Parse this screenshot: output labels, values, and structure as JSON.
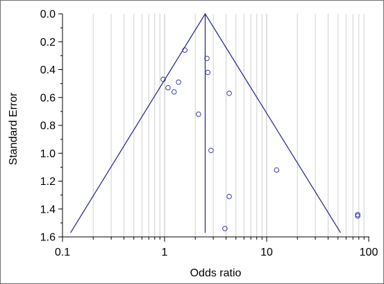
{
  "chart_data": {
    "type": "scatter",
    "title": "",
    "xlabel": "Odds ratio",
    "ylabel": "Standard Error",
    "x_scale": "log",
    "xlim": [
      0.1,
      100
    ],
    "ylim": [
      0.0,
      1.6
    ],
    "y_inverted": true,
    "x_ticks": [
      0.1,
      1,
      10,
      100
    ],
    "x_tick_labels": [
      "0.1",
      "1",
      "10",
      "100"
    ],
    "y_ticks": [
      0.0,
      0.2,
      0.4,
      0.6,
      0.8,
      1.0,
      1.2,
      1.4,
      1.6
    ],
    "y_tick_labels": [
      "0.0",
      "0.2",
      "0.4",
      "0.6",
      "0.8",
      "1.0",
      "1.2",
      "1.4",
      "1.6"
    ],
    "grid": {
      "x_minor_log": true,
      "y": false
    },
    "pooled_odds_ratio": 2.5,
    "funnel": {
      "apex": {
        "x": 2.5,
        "y": 0.0
      },
      "left_base": {
        "x": 0.12,
        "y": 1.57
      },
      "right_base": {
        "x": 53,
        "y": 1.57
      },
      "vertical_line": {
        "x": 2.5,
        "y_from": 0.0,
        "y_to": 1.57
      }
    },
    "points": [
      {
        "x": 1.58,
        "y": 0.26
      },
      {
        "x": 2.6,
        "y": 0.32
      },
      {
        "x": 2.65,
        "y": 0.42
      },
      {
        "x": 0.97,
        "y": 0.47
      },
      {
        "x": 1.37,
        "y": 0.49
      },
      {
        "x": 1.08,
        "y": 0.53
      },
      {
        "x": 1.24,
        "y": 0.56
      },
      {
        "x": 4.3,
        "y": 0.57
      },
      {
        "x": 2.15,
        "y": 0.72
      },
      {
        "x": 2.85,
        "y": 0.98
      },
      {
        "x": 12.5,
        "y": 1.12
      },
      {
        "x": 4.3,
        "y": 1.31
      },
      {
        "x": 3.9,
        "y": 1.54
      },
      {
        "x": 78,
        "y": 1.44
      },
      {
        "x": 78,
        "y": 1.45
      }
    ],
    "colors": {
      "line": "#2b2f8f",
      "marker": "#3a3ab0",
      "grid": "#d0d0d0",
      "axis": "#000000"
    }
  }
}
